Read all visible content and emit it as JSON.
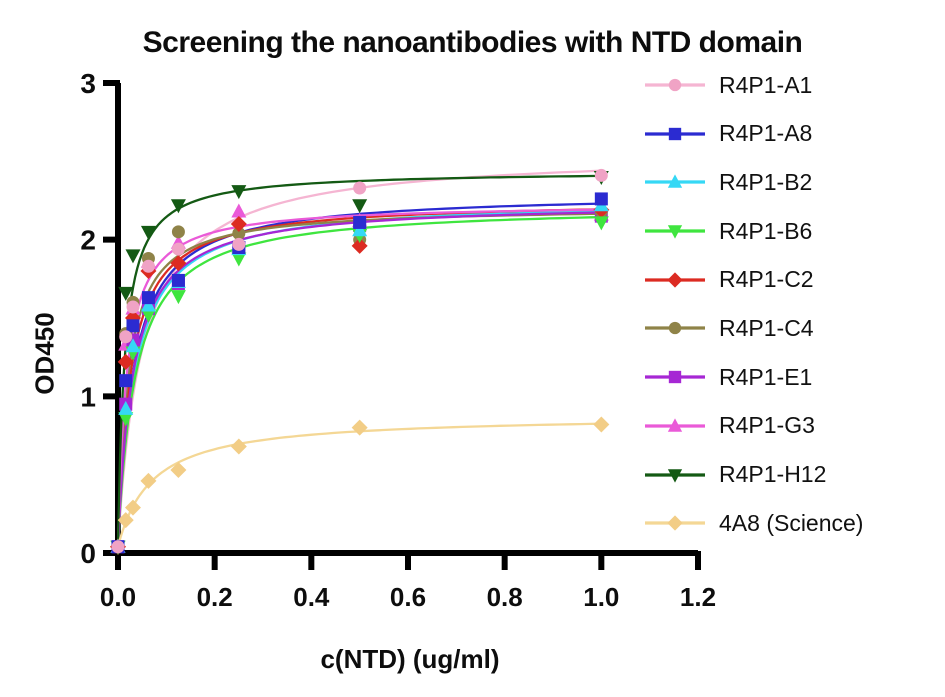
{
  "chart_data": {
    "type": "scatter",
    "title": "Screening the nanoantibodies with NTD domain",
    "xlabel": "c(NTD) (ug/ml)",
    "ylabel": "OD450",
    "xlim": [
      0,
      1.2
    ],
    "ylim": [
      0,
      3
    ],
    "x_ticks": [
      0,
      0.2,
      0.4,
      0.6,
      0.8,
      1.0,
      1.2
    ],
    "x_tick_labels": [
      "0.0",
      "0.2",
      "0.4",
      "0.6",
      "0.8",
      "1.0",
      "1.2"
    ],
    "y_ticks": [
      0,
      1,
      2,
      3
    ],
    "y_tick_labels": [
      "0",
      "1",
      "2",
      "3"
    ],
    "grid": false,
    "legend_position": "right",
    "axis_color": "#000000",
    "x": [
      0,
      0.016,
      0.031,
      0.063,
      0.125,
      0.25,
      0.5,
      1.0
    ],
    "series": [
      {
        "name": "R4P1-A1",
        "marker": "circle",
        "marker_color": "#f0a3c5",
        "line_color": "#f5b5d2",
        "values": [
          0.04,
          1.38,
          1.57,
          1.83,
          1.94,
          1.97,
          2.33,
          2.41
        ],
        "fit": {
          "bmax": 2.52,
          "kd": 0.05,
          "y0": 0.04
        }
      },
      {
        "name": "R4P1-A8",
        "marker": "square",
        "marker_color": "#2b2bd1",
        "line_color": "#2b2bd1",
        "values": [
          0.04,
          1.1,
          1.45,
          1.63,
          1.74,
          1.95,
          2.11,
          2.26
        ],
        "fit": {
          "bmax": 2.26,
          "kd": 0.032,
          "y0": 0.04
        }
      },
      {
        "name": "R4P1-B2",
        "marker": "triangle-up",
        "marker_color": "#35d8f5",
        "line_color": "#35d8f5",
        "values": [
          0.04,
          0.92,
          1.32,
          1.58,
          1.73,
          1.94,
          2.06,
          2.22
        ],
        "fit": {
          "bmax": 2.22,
          "kd": 0.034,
          "y0": 0.04
        }
      },
      {
        "name": "R4P1-B6",
        "marker": "triangle-down",
        "marker_color": "#3fe53f",
        "line_color": "#3fe53f",
        "values": [
          0.04,
          0.86,
          1.28,
          1.52,
          1.64,
          1.88,
          2.03,
          2.11
        ],
        "fit": {
          "bmax": 2.18,
          "kd": 0.036,
          "y0": 0.04
        }
      },
      {
        "name": "R4P1-C2",
        "marker": "diamond",
        "marker_color": "#dc2b22",
        "line_color": "#dc2b22",
        "values": [
          0.04,
          1.22,
          1.5,
          1.8,
          1.85,
          2.1,
          1.96,
          2.19
        ],
        "fit": {
          "bmax": 2.21,
          "kd": 0.026,
          "y0": 0.04
        }
      },
      {
        "name": "R4P1-C4",
        "marker": "circle",
        "marker_color": "#8f8348",
        "line_color": "#8f8348",
        "values": [
          0.04,
          1.4,
          1.6,
          1.88,
          2.05,
          2.04,
          2.0,
          2.18
        ],
        "fit": {
          "bmax": 2.17,
          "kd": 0.021,
          "y0": 0.04
        }
      },
      {
        "name": "R4P1-E1",
        "marker": "square",
        "marker_color": "#a627d4",
        "line_color": "#a627d4",
        "values": [
          0.04,
          0.95,
          1.36,
          1.56,
          1.72,
          1.95,
          2.09,
          2.15
        ],
        "fit": {
          "bmax": 2.2,
          "kd": 0.031,
          "y0": 0.04
        }
      },
      {
        "name": "R4P1-G3",
        "marker": "triangle-up",
        "marker_color": "#ea5ad8",
        "line_color": "#ea5ad8",
        "values": [
          0.04,
          1.33,
          1.56,
          1.86,
          1.98,
          2.18,
          2.12,
          2.16
        ],
        "fit": {
          "bmax": 2.19,
          "kd": 0.018,
          "y0": 0.04
        }
      },
      {
        "name": "R4P1-H12",
        "marker": "triangle-down",
        "marker_color": "#145a14",
        "line_color": "#145a14",
        "values": [
          0.04,
          1.66,
          1.9,
          2.05,
          2.22,
          2.31,
          2.22,
          2.4
        ],
        "fit": {
          "bmax": 2.4,
          "kd": 0.014,
          "y0": 0.04
        }
      },
      {
        "name": "4A8 (Science)",
        "marker": "diamond",
        "marker_color": "#f2cd86",
        "line_color": "#f4d795",
        "values": [
          0.04,
          0.21,
          0.29,
          0.46,
          0.53,
          0.68,
          0.8,
          0.82
        ],
        "fit": {
          "bmax": 0.84,
          "kd": 0.07,
          "y0": 0.04
        }
      }
    ]
  }
}
